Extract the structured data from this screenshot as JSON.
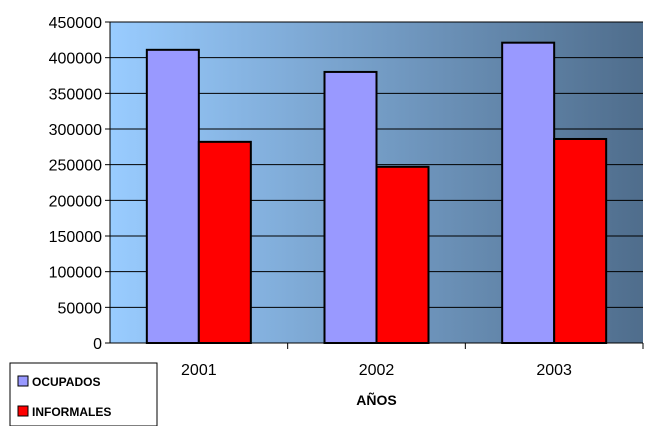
{
  "chart_data": {
    "type": "bar",
    "categories": [
      "2001",
      "2002",
      "2003"
    ],
    "series": [
      {
        "name": "OCUPADOS",
        "values": [
          411000,
          380000,
          421000
        ],
        "color": "#9999ff"
      },
      {
        "name": "INFORMALES",
        "values": [
          282000,
          247000,
          286000
        ],
        "color": "#ff0000"
      }
    ],
    "xlabel": "AÑOS",
    "ylabel": "",
    "ylim": [
      0,
      450000
    ],
    "yticks": [
      0,
      50000,
      100000,
      150000,
      200000,
      250000,
      300000,
      350000,
      400000,
      450000
    ],
    "ytick_labels": [
      "0",
      "50000",
      "100000",
      "150000",
      "200000",
      "250000",
      "300000",
      "350000",
      "400000",
      "450000"
    ],
    "grid": true,
    "legend_position": "bottom-left",
    "background_gradient": [
      "#99ccff",
      "#4f6d8c"
    ]
  }
}
